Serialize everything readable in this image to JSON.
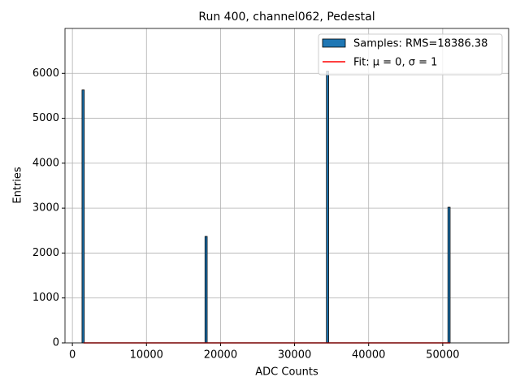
{
  "chart_data": {
    "type": "histogram",
    "title": "Run 400, channel062, Pedestal",
    "xlabel": "ADC Counts",
    "ylabel": "Entries",
    "bins": [
      1300,
      1600,
      17900,
      18200,
      34300,
      34600,
      50700,
      51000
    ],
    "counts": [
      5630,
      0,
      2370,
      0,
      6050,
      0,
      3020
    ],
    "name": "Samples: RMS=18386.38",
    "color": "#1f77b4",
    "edgecolor": "#000000",
    "fit": {
      "name": "Fit: μ = 0, σ = 1",
      "color": "#ff0000",
      "x": [
        1500,
        51000
      ],
      "values": [
        0,
        0
      ]
    },
    "xlim": [
      -1000,
      58900
    ],
    "ylim": [
      0,
      7000
    ],
    "xticks": [
      0,
      10000,
      20000,
      30000,
      40000,
      50000
    ],
    "yticks": [
      0,
      1000,
      2000,
      3000,
      4000,
      5000,
      6000
    ],
    "grid": true,
    "legend": "upper right"
  }
}
